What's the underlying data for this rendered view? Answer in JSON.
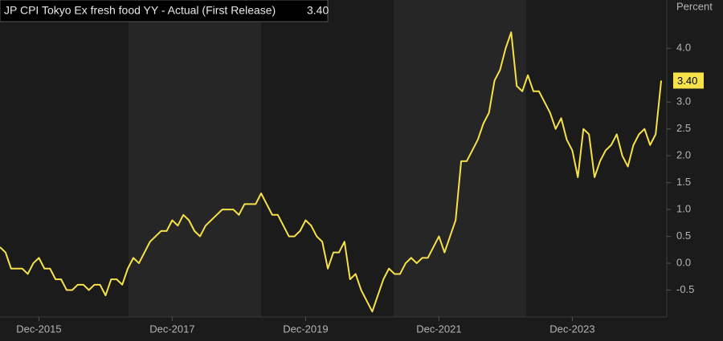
{
  "chart_data": {
    "type": "line",
    "title": "JP CPI Tokyo Ex fresh food YY - Actual (First Release)",
    "y_axis_label": "Percent",
    "x": [
      "May-2015",
      "Jun-2015",
      "Jul-2015",
      "Aug-2015",
      "Sep-2015",
      "Oct-2015",
      "Nov-2015",
      "Dec-2015",
      "Jan-2016",
      "Feb-2016",
      "Mar-2016",
      "Apr-2016",
      "May-2016",
      "Jun-2016",
      "Jul-2016",
      "Aug-2016",
      "Sep-2016",
      "Oct-2016",
      "Nov-2016",
      "Dec-2016",
      "Jan-2017",
      "Feb-2017",
      "Mar-2017",
      "Apr-2017",
      "May-2017",
      "Jun-2017",
      "Jul-2017",
      "Aug-2017",
      "Sep-2017",
      "Oct-2017",
      "Nov-2017",
      "Dec-2017",
      "Jan-2018",
      "Feb-2018",
      "Mar-2018",
      "Apr-2018",
      "May-2018",
      "Jun-2018",
      "Jul-2018",
      "Aug-2018",
      "Sep-2018",
      "Oct-2018",
      "Nov-2018",
      "Dec-2018",
      "Jan-2019",
      "Feb-2019",
      "Mar-2019",
      "Apr-2019",
      "May-2019",
      "Jun-2019",
      "Jul-2019",
      "Aug-2019",
      "Sep-2019",
      "Oct-2019",
      "Nov-2019",
      "Dec-2019",
      "Jan-2020",
      "Feb-2020",
      "Mar-2020",
      "Apr-2020",
      "May-2020",
      "Jun-2020",
      "Jul-2020",
      "Aug-2020",
      "Sep-2020",
      "Oct-2020",
      "Nov-2020",
      "Dec-2020",
      "Jan-2021",
      "Feb-2021",
      "Mar-2021",
      "Apr-2021",
      "May-2021",
      "Jun-2021",
      "Jul-2021",
      "Aug-2021",
      "Sep-2021",
      "Oct-2021",
      "Nov-2021",
      "Dec-2021",
      "Jan-2022",
      "Feb-2022",
      "Mar-2022",
      "Apr-2022",
      "May-2022",
      "Jun-2022",
      "Jul-2022",
      "Aug-2022",
      "Sep-2022",
      "Oct-2022",
      "Nov-2022",
      "Dec-2022",
      "Jan-2023",
      "Feb-2023",
      "Mar-2023",
      "Apr-2023",
      "May-2023",
      "Jun-2023",
      "Jul-2023",
      "Aug-2023",
      "Sep-2023",
      "Oct-2023",
      "Nov-2023",
      "Dec-2023",
      "Jan-2024",
      "Feb-2024",
      "Mar-2024",
      "Apr-2024",
      "May-2024",
      "Jun-2024",
      "Jul-2024",
      "Aug-2024",
      "Sep-2024",
      "Oct-2024",
      "Nov-2024",
      "Dec-2024",
      "Jan-2025",
      "Feb-2025",
      "Mar-2025",
      "Apr-2025"
    ],
    "series": [
      {
        "name": "JP CPI Tokyo Ex fresh food YY - Actual (First Release)",
        "color": "#f6e14b",
        "values": [
          0.3,
          0.2,
          -0.1,
          -0.1,
          -0.1,
          -0.2,
          0.0,
          0.1,
          -0.1,
          -0.1,
          -0.3,
          -0.3,
          -0.5,
          -0.5,
          -0.4,
          -0.4,
          -0.5,
          -0.4,
          -0.4,
          -0.6,
          -0.3,
          -0.3,
          -0.4,
          -0.1,
          0.1,
          0.0,
          0.2,
          0.4,
          0.5,
          0.6,
          0.6,
          0.8,
          0.7,
          0.9,
          0.8,
          0.6,
          0.5,
          0.7,
          0.8,
          0.9,
          1.0,
          1.0,
          1.0,
          0.9,
          1.1,
          1.1,
          1.1,
          1.3,
          1.1,
          0.9,
          0.9,
          0.7,
          0.5,
          0.5,
          0.6,
          0.8,
          0.7,
          0.5,
          0.4,
          -0.1,
          0.2,
          0.2,
          0.4,
          -0.3,
          -0.2,
          -0.5,
          -0.7,
          -0.9,
          -0.6,
          -0.3,
          -0.1,
          -0.2,
          -0.2,
          0.0,
          0.1,
          0.0,
          0.1,
          0.1,
          0.3,
          0.5,
          0.2,
          0.5,
          0.8,
          1.9,
          1.9,
          2.1,
          2.3,
          2.6,
          2.8,
          3.4,
          3.6,
          4.0,
          4.3,
          3.3,
          3.2,
          3.5,
          3.2,
          3.2,
          3.0,
          2.8,
          2.5,
          2.7,
          2.3,
          2.1,
          1.6,
          2.5,
          2.4,
          1.6,
          1.9,
          2.1,
          2.2,
          2.4,
          2.0,
          1.8,
          2.2,
          2.4,
          2.5,
          2.2,
          2.4,
          3.4
        ],
        "value_labels": [
          null,
          null,
          null,
          null,
          null,
          null,
          null,
          null,
          null,
          null,
          null,
          null,
          null,
          null,
          null,
          null,
          null,
          null,
          null,
          null,
          null,
          null,
          null,
          null,
          null,
          null,
          null,
          null,
          null,
          null,
          null,
          null,
          null,
          null,
          null,
          null,
          null,
          null,
          null,
          null,
          null,
          null,
          null,
          null,
          null,
          null,
          null,
          null,
          null,
          null,
          null,
          null,
          null,
          null,
          null,
          null,
          null,
          null,
          null,
          null,
          null,
          null,
          null,
          null,
          null,
          null,
          null,
          null,
          null,
          null,
          null,
          null,
          null,
          null,
          null,
          null,
          null,
          null,
          null,
          null,
          null,
          null,
          null,
          null,
          null,
          null,
          null,
          null,
          null,
          null,
          null,
          null,
          null,
          null,
          null,
          null,
          null,
          null,
          null,
          null,
          null,
          null,
          null,
          null,
          null,
          null,
          null,
          null,
          null,
          null,
          null,
          null,
          null,
          null,
          null,
          null,
          null,
          null,
          null,
          "3.40"
        ]
      }
    ],
    "xlim": [
      "May-2015",
      "May-2025"
    ],
    "xticks": [
      "Dec-2015",
      "Dec-2017",
      "Dec-2019",
      "Dec-2021",
      "Dec-2023"
    ],
    "ylim": [
      -1.0,
      4.9
    ],
    "yticks": [
      -0.5,
      {
        "value": 0,
        "label": "0.0"
      },
      0.5,
      {
        "value": 1,
        "label": "1.0"
      },
      1.5,
      {
        "value": 2,
        "label": "2.0"
      },
      2.5,
      {
        "value": 3,
        "label": "3.0"
      },
      {
        "value": 4,
        "label": "4.0"
      }
    ],
    "y_axis_side": "right"
  }
}
